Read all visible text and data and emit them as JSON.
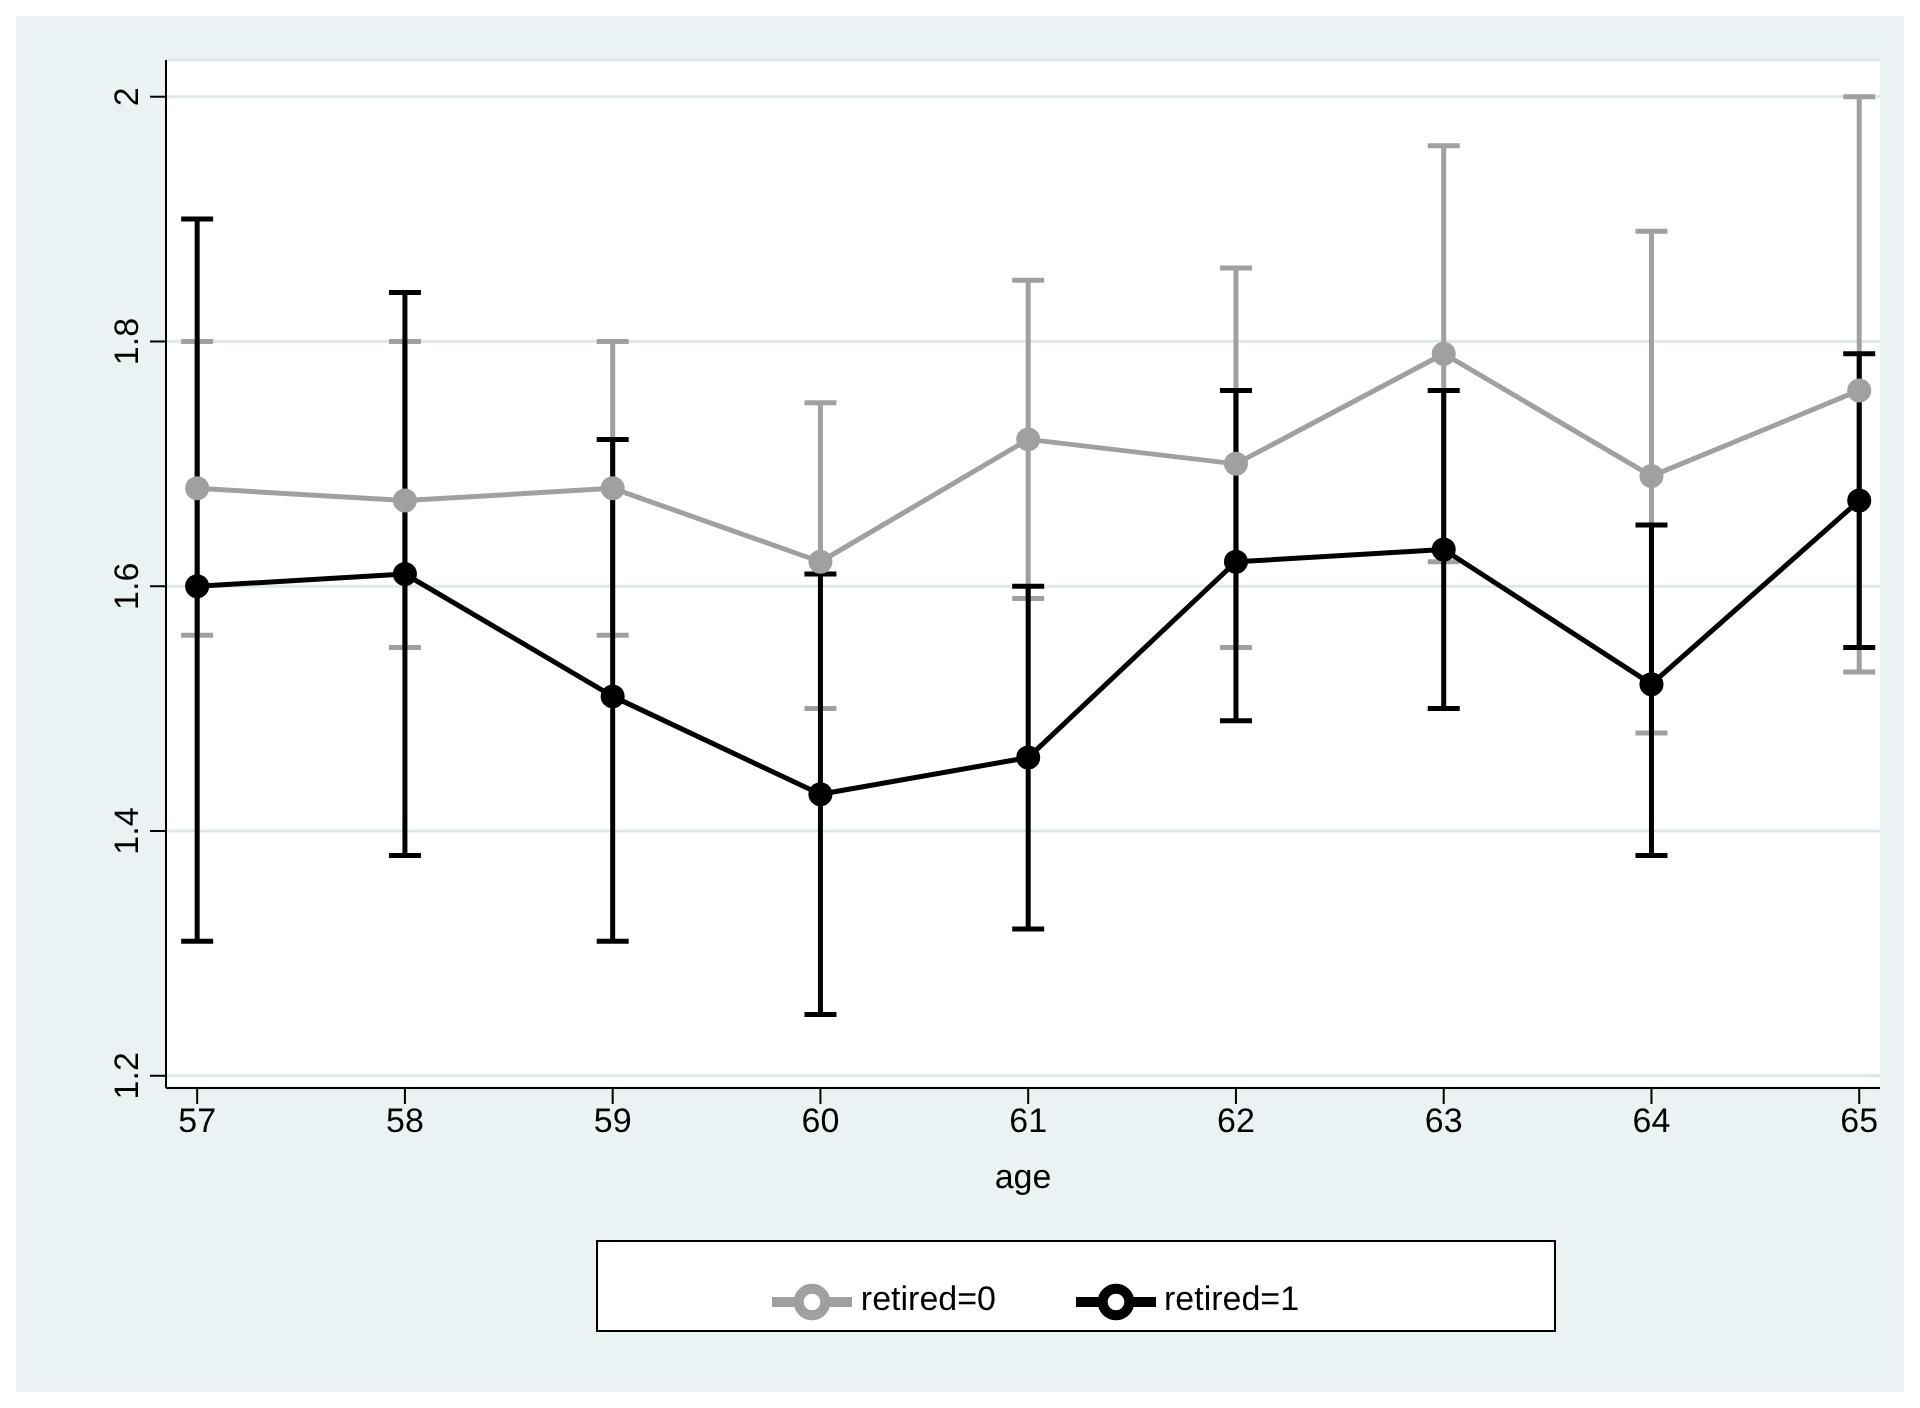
{
  "chart_data": {
    "type": "line",
    "xlabel": "age",
    "x": [
      57,
      58,
      59,
      60,
      61,
      62,
      63,
      64,
      65
    ],
    "series": [
      {
        "name": "retired=0",
        "color": "#a0a0a0",
        "values": [
          1.68,
          1.67,
          1.68,
          1.62,
          1.72,
          1.7,
          1.79,
          1.69,
          1.76
        ],
        "errors": [
          [
            1.56,
            1.8
          ],
          [
            1.55,
            1.8
          ],
          [
            1.56,
            1.8
          ],
          [
            1.5,
            1.75
          ],
          [
            1.59,
            1.85
          ],
          [
            1.55,
            1.86
          ],
          [
            1.62,
            1.96
          ],
          [
            1.48,
            1.89
          ],
          [
            1.53,
            2.0
          ]
        ]
      },
      {
        "name": "retired=1",
        "color": "#000000",
        "values": [
          1.6,
          1.61,
          1.51,
          1.43,
          1.46,
          1.62,
          1.63,
          1.52,
          1.67
        ],
        "errors": [
          [
            1.31,
            1.9
          ],
          [
            1.38,
            1.84
          ],
          [
            1.31,
            1.72
          ],
          [
            1.25,
            1.61
          ],
          [
            1.32,
            1.6
          ],
          [
            1.49,
            1.76
          ],
          [
            1.5,
            1.76
          ],
          [
            1.38,
            1.65
          ],
          [
            1.55,
            1.79
          ]
        ]
      }
    ],
    "xlim": [
      56.85,
      65.1
    ],
    "xticks": [
      57,
      58,
      59,
      60,
      61,
      62,
      63,
      64,
      65
    ],
    "ylim": [
      1.19,
      2.03
    ],
    "yticks": [
      1.2,
      1.4,
      1.6,
      1.8,
      2
    ],
    "grid": "y",
    "legend": "bottom",
    "marker": "circle",
    "line_style": "solid"
  }
}
